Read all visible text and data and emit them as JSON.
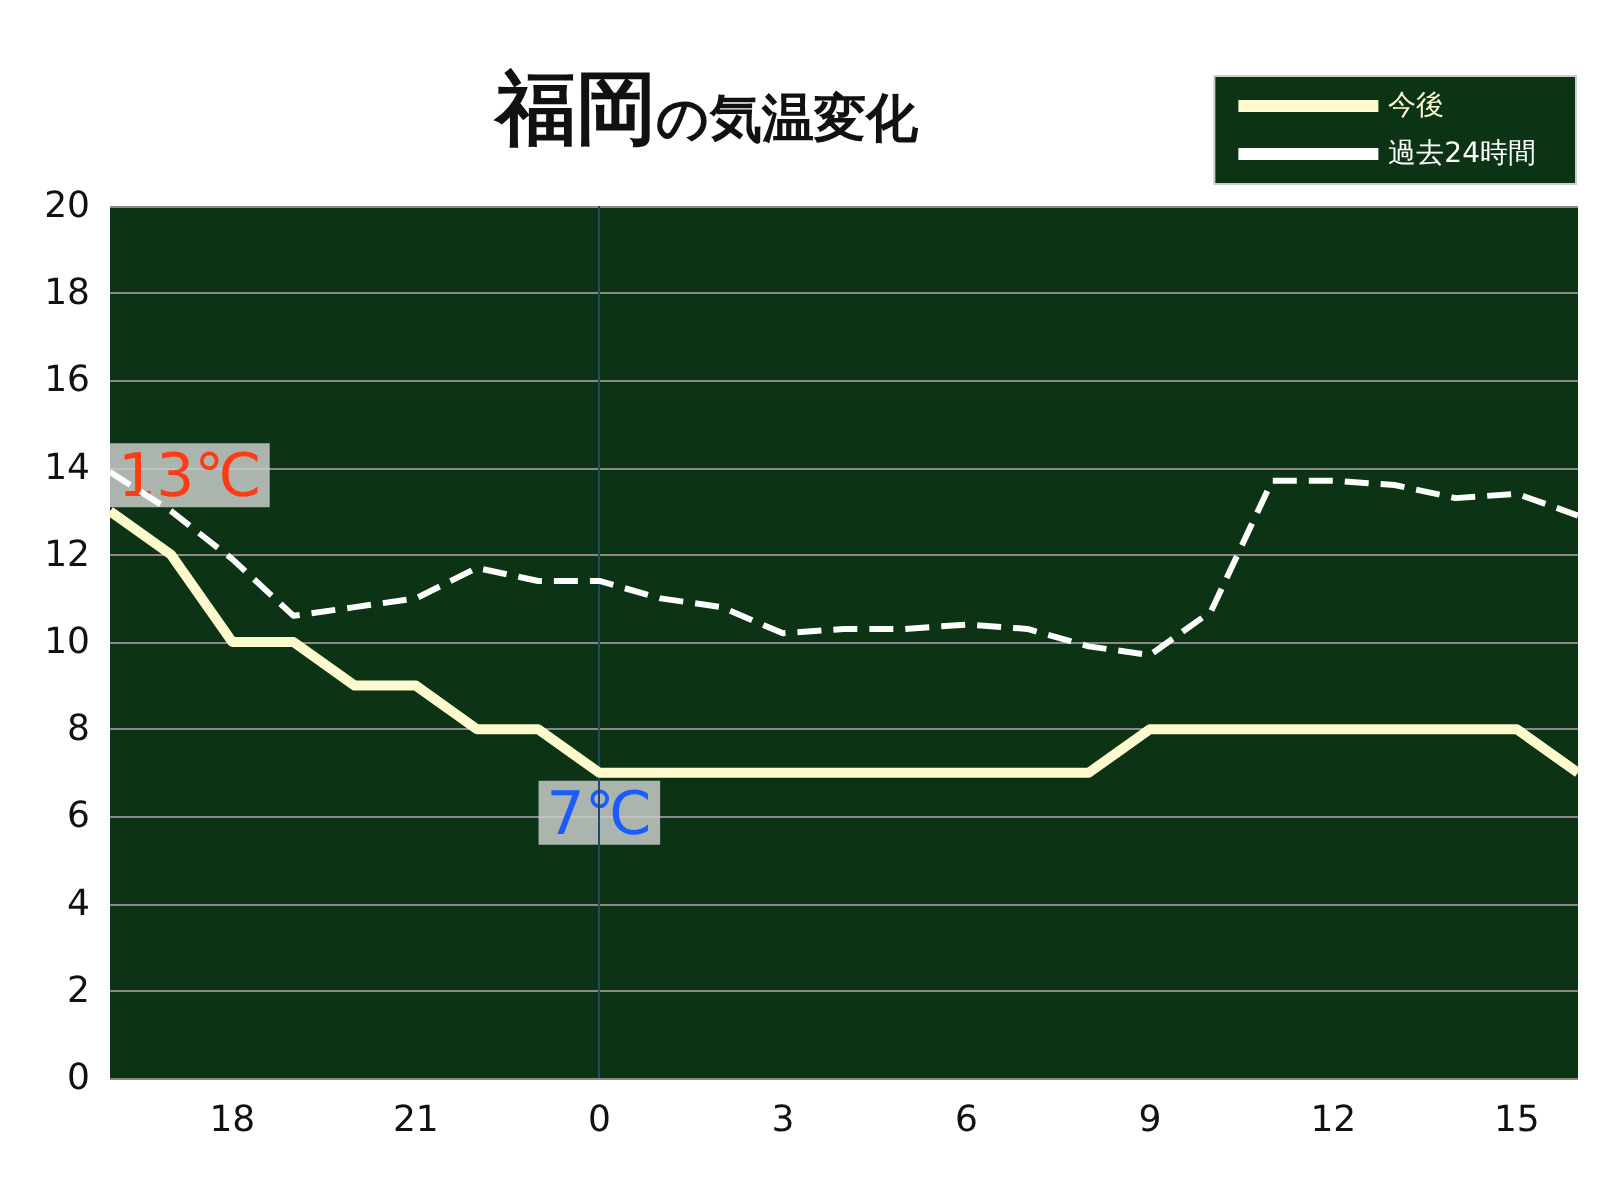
{
  "chart_data": {
    "type": "line",
    "title": "福岡の気温変化",
    "categories": [
      null,
      null,
      "18",
      null,
      null,
      "21",
      null,
      null,
      "0",
      null,
      null,
      "3",
      null,
      null,
      "6",
      null,
      null,
      "9",
      null,
      null,
      "12",
      null,
      null,
      "15",
      null
    ],
    "series": [
      {
        "name": "今後",
        "color": "#fffacd",
        "line_style": "solid",
        "values": [
          13,
          12,
          10,
          10,
          9,
          9,
          8,
          8,
          7,
          7,
          7,
          7,
          7,
          7,
          7,
          7,
          7,
          8,
          8,
          8,
          8,
          8,
          8,
          8,
          7
        ]
      },
      {
        "name": "過去24時間",
        "color": "#ffffff",
        "line_style": "dashed",
        "values": [
          13.9,
          13.0,
          11.9,
          10.6,
          10.8,
          11.0,
          11.7,
          11.4,
          11.4,
          11.0,
          10.8,
          10.2,
          10.3,
          10.3,
          10.4,
          10.3,
          9.9,
          9.7,
          10.7,
          13.7,
          13.7,
          13.6,
          13.3,
          13.4,
          12.9
        ]
      }
    ],
    "ylim": [
      0,
      20
    ],
    "yticks": [
      0,
      2,
      4,
      6,
      8,
      10,
      12,
      14,
      16,
      18,
      20
    ],
    "grid": "y",
    "legend": "top right",
    "marker": "none",
    "ref_lines": [
      {
        "axis": "x",
        "value": "0",
        "color": "#1f4a6a"
      }
    ],
    "annotations": [
      {
        "text": "13℃",
        "y": 13
      },
      {
        "text": "7℃",
        "x": "0",
        "y": 7
      }
    ]
  }
}
